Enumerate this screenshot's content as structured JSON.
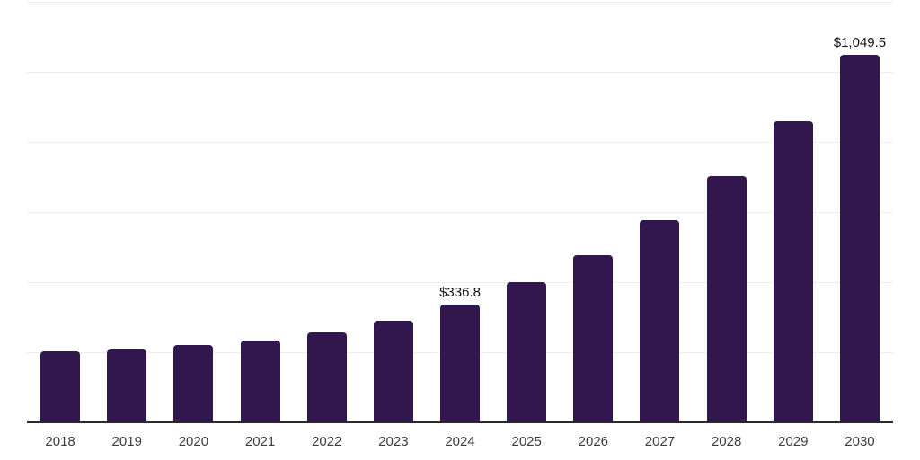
{
  "chart": {
    "colors": {
      "background": "#ffffff",
      "bar": "#32174e",
      "gridline": "#ededed",
      "axis": "#2a2a2a",
      "tick_label": "#3d3d3d",
      "data_label": "#111111"
    }
  },
  "chart_data": {
    "type": "bar",
    "title": "",
    "xlabel": "",
    "ylabel": "",
    "categories": [
      "2018",
      "2019",
      "2020",
      "2021",
      "2022",
      "2023",
      "2024",
      "2025",
      "2026",
      "2027",
      "2028",
      "2029",
      "2030"
    ],
    "values": [
      202,
      208,
      220,
      234,
      256,
      289,
      336.8,
      401,
      478,
      577,
      702,
      858,
      1049.5
    ],
    "data_labels": [
      "",
      "",
      "",
      "",
      "",
      "",
      "$336.8",
      "",
      "",
      "",
      "",
      "",
      "$1,049.5"
    ],
    "labeled_points": [
      {
        "category": "2024",
        "label": "$336.8"
      },
      {
        "category": "2030",
        "label": "$1,049.5"
      }
    ],
    "ylim": [
      0,
      1200
    ],
    "gridline_step": 200,
    "grid": "horizontal",
    "legend_position": "none",
    "y_axis_tick_labels_visible": false
  }
}
